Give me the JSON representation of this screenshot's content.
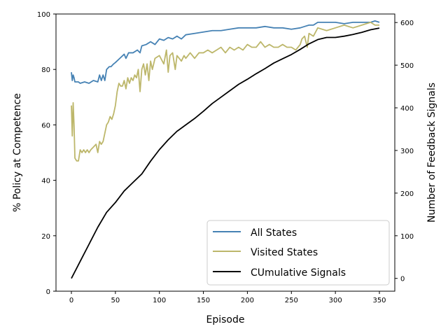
{
  "chart_data": {
    "type": "line",
    "xlabel": "Episode",
    "ylabel_left": "% Policy at Competence",
    "ylabel_right": "Number of Feedback Signals",
    "xlim": [
      -17.5,
      367.5
    ],
    "ylim_left": [
      0,
      100
    ],
    "ylim_right": [
      -30,
      620
    ],
    "xticks": [
      0,
      50,
      100,
      150,
      200,
      250,
      300,
      350
    ],
    "yticks_left": [
      0,
      20,
      40,
      60,
      80,
      100
    ],
    "yticks_right": [
      0,
      100,
      200,
      300,
      400,
      500,
      600
    ],
    "grid": false,
    "legend_position": "lower-right",
    "series": [
      {
        "name": "All States",
        "axis": "left",
        "color": "#4682b4",
        "x": [
          0,
          1,
          2,
          3,
          4,
          5,
          8,
          10,
          15,
          20,
          25,
          30,
          32,
          34,
          36,
          38,
          40,
          43,
          45,
          48,
          50,
          55,
          60,
          62,
          65,
          70,
          75,
          78,
          80,
          85,
          90,
          95,
          100,
          105,
          110,
          115,
          120,
          125,
          130,
          140,
          150,
          160,
          170,
          180,
          190,
          200,
          210,
          220,
          230,
          240,
          250,
          260,
          265,
          270,
          275,
          280,
          290,
          300,
          310,
          320,
          330,
          340,
          345,
          350
        ],
        "y": [
          79,
          76,
          78,
          77,
          75.5,
          75.5,
          75.5,
          75,
          75.5,
          75,
          76,
          75.5,
          78,
          76,
          78,
          76,
          80,
          81,
          81,
          82,
          82.5,
          84,
          85.5,
          84,
          86,
          86,
          87,
          86,
          88.5,
          89,
          90,
          89,
          91,
          90.5,
          91.5,
          91,
          92,
          91,
          92.5,
          93,
          93.5,
          94,
          94,
          94.5,
          95,
          95,
          95,
          95.5,
          95,
          95,
          94.5,
          95,
          95.5,
          96,
          96,
          97,
          97,
          97,
          96.5,
          97,
          97,
          97,
          97.5,
          97
        ]
      },
      {
        "name": "Visited States",
        "axis": "left",
        "color": "#bdb76b",
        "x": [
          0,
          1,
          2,
          3,
          4,
          6,
          8,
          10,
          12,
          14,
          16,
          18,
          20,
          22,
          25,
          28,
          30,
          32,
          34,
          36,
          38,
          40,
          42,
          44,
          46,
          48,
          50,
          52,
          54,
          56,
          58,
          60,
          62,
          64,
          66,
          68,
          70,
          72,
          74,
          76,
          78,
          80,
          82,
          84,
          86,
          88,
          90,
          92,
          95,
          100,
          105,
          108,
          110,
          112,
          115,
          118,
          120,
          125,
          128,
          130,
          135,
          140,
          145,
          150,
          155,
          160,
          165,
          170,
          175,
          180,
          185,
          190,
          195,
          200,
          205,
          210,
          215,
          220,
          225,
          230,
          235,
          240,
          245,
          250,
          255,
          260,
          262,
          265,
          268,
          270,
          275,
          280,
          290,
          300,
          310,
          320,
          330,
          340,
          345,
          350
        ],
        "y": [
          67,
          56,
          68,
          60,
          48,
          47,
          47,
          51,
          50,
          51,
          50,
          51,
          50,
          51,
          52,
          53,
          50,
          54,
          53,
          54,
          57,
          60,
          61,
          63,
          62,
          64,
          67,
          72,
          75,
          74,
          74,
          76,
          73,
          77,
          75,
          77,
          76,
          78,
          77,
          80,
          72,
          80,
          82,
          78,
          82,
          76,
          83,
          80,
          84,
          85,
          82,
          87,
          79,
          85,
          86,
          80,
          85,
          83,
          85,
          84,
          86,
          84,
          86,
          86,
          87,
          86,
          87,
          88,
          86,
          88,
          87,
          88,
          87,
          89,
          88,
          88,
          90,
          88,
          89,
          88,
          88,
          89,
          88,
          88,
          87,
          89,
          91,
          92,
          88,
          93,
          92,
          95,
          94,
          95,
          96,
          95,
          96,
          97,
          96,
          96
        ]
      },
      {
        "name": "CUmulative Signals",
        "axis": "right",
        "color": "#000000",
        "x": [
          0,
          10,
          20,
          30,
          40,
          50,
          60,
          70,
          80,
          90,
          100,
          110,
          120,
          130,
          140,
          150,
          160,
          170,
          180,
          190,
          200,
          210,
          220,
          230,
          240,
          250,
          260,
          270,
          280,
          290,
          300,
          310,
          320,
          330,
          340,
          350
        ],
        "y": [
          0,
          40,
          80,
          120,
          155,
          178,
          205,
          225,
          245,
          275,
          302,
          325,
          345,
          360,
          375,
          392,
          410,
          425,
          440,
          455,
          467,
          480,
          492,
          505,
          515,
          525,
          537,
          550,
          560,
          565,
          565,
          568,
          572,
          577,
          583,
          587
        ]
      }
    ]
  }
}
